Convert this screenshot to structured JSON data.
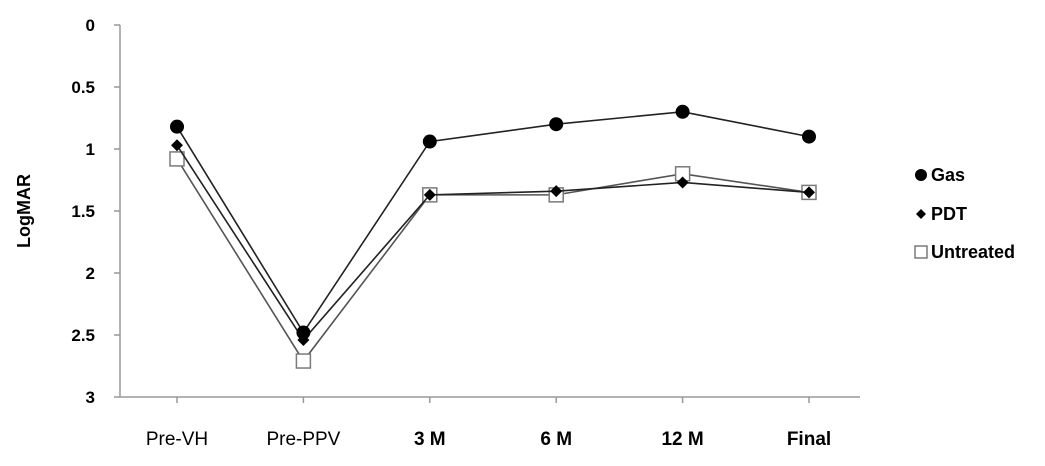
{
  "chart_data": {
    "type": "line",
    "title": "",
    "xlabel": "",
    "ylabel": "LogMAR",
    "categories": [
      "Pre-VH",
      "Pre-PPV",
      "3 M",
      "6 M",
      "12 M",
      "Final"
    ],
    "ylim": [
      0,
      3
    ],
    "y_inverted": true,
    "y_ticks": [
      "0",
      "0.5",
      "1",
      "1.5",
      "2",
      "2.5",
      "3"
    ],
    "grid": false,
    "legend_position": "right",
    "series": [
      {
        "name": "Gas",
        "marker": "circle",
        "color": "#000000",
        "values": [
          0.82,
          2.48,
          0.94,
          0.8,
          0.7,
          0.9
        ]
      },
      {
        "name": "PDT",
        "marker": "diamond",
        "color": "#000000",
        "values": [
          0.97,
          2.54,
          1.37,
          1.34,
          1.27,
          1.35
        ]
      },
      {
        "name": "Untreated",
        "marker": "square-open",
        "color": "#7a7a7a",
        "values": [
          1.08,
          2.71,
          1.37,
          1.37,
          1.2,
          1.35
        ]
      }
    ]
  }
}
